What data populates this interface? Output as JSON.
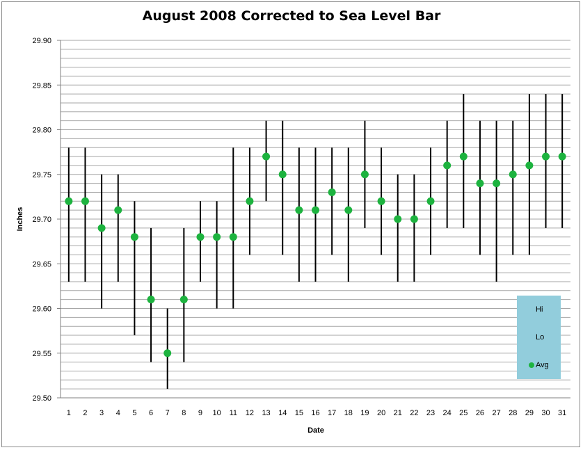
{
  "chart_data": {
    "type": "hi-lo-avg",
    "title": "August 2008 Corrected to Sea Level Bar",
    "xlabel": "Date",
    "ylabel": "Inches",
    "ylim": [
      29.5,
      29.9
    ],
    "y_ticks": [
      "29.50",
      "29.55",
      "29.60",
      "29.65",
      "29.70",
      "29.75",
      "29.80",
      "29.85",
      "29.90"
    ],
    "grid": "horizontal minor every 0.01, major every 0.05",
    "legend_placement": "bottom-right",
    "categories": [
      "1",
      "2",
      "3",
      "4",
      "5",
      "6",
      "7",
      "8",
      "9",
      "10",
      "11",
      "12",
      "13",
      "14",
      "15",
      "16",
      "17",
      "18",
      "19",
      "20",
      "21",
      "22",
      "23",
      "24",
      "25",
      "26",
      "27",
      "28",
      "29",
      "30",
      "31"
    ],
    "series": [
      {
        "name": "Hi",
        "values": [
          29.78,
          29.78,
          29.75,
          29.75,
          29.72,
          29.69,
          29.6,
          29.69,
          29.72,
          29.72,
          29.78,
          29.78,
          29.81,
          29.81,
          29.78,
          29.78,
          29.78,
          29.78,
          29.81,
          29.78,
          29.75,
          29.75,
          29.78,
          29.81,
          29.84,
          29.81,
          29.81,
          29.81,
          29.84,
          29.84,
          29.84
        ]
      },
      {
        "name": "Lo",
        "values": [
          29.63,
          29.63,
          29.6,
          29.63,
          29.57,
          29.54,
          29.51,
          29.54,
          29.63,
          29.6,
          29.6,
          29.66,
          29.72,
          29.66,
          29.63,
          29.63,
          29.66,
          29.63,
          29.69,
          29.66,
          29.63,
          29.63,
          29.66,
          29.69,
          29.69,
          29.66,
          29.63,
          29.66,
          29.66,
          29.69,
          29.69
        ]
      },
      {
        "name": "Avg",
        "values": [
          29.72,
          29.72,
          29.69,
          29.71,
          29.68,
          29.61,
          29.55,
          29.61,
          29.68,
          29.68,
          29.68,
          29.72,
          29.77,
          29.75,
          29.71,
          29.71,
          29.73,
          29.71,
          29.75,
          29.72,
          29.7,
          29.7,
          29.72,
          29.76,
          29.77,
          29.74,
          29.74,
          29.75,
          29.76,
          29.77,
          29.77
        ]
      }
    ],
    "colors": {
      "bar": "#000000",
      "avg_marker": "#1db33f",
      "legend_bg": "#92cddc",
      "grid": "#a6a6a6"
    }
  }
}
